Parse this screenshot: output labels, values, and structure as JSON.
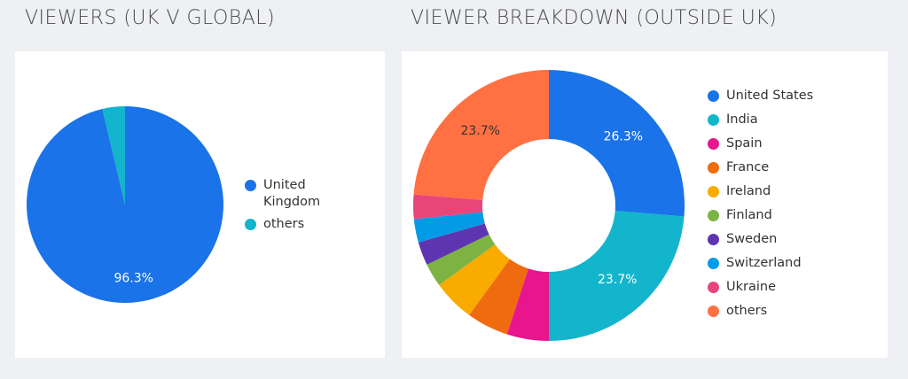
{
  "chart_data": [
    {
      "type": "pie",
      "title": "VIEWERS (UK V GLOBAL)",
      "labels": [
        "United Kingdom",
        "others"
      ],
      "values": [
        96.3,
        3.7
      ],
      "data_labels": [
        "96.3%",
        ""
      ],
      "colors": [
        "#1a73e8",
        "#12b5cb"
      ],
      "legend_position": "right"
    },
    {
      "type": "pie",
      "title": "VIEWER BREAKDOWN (OUTSIDE UK)",
      "labels": [
        "United States",
        "India",
        "Spain",
        "France",
        "Ireland",
        "Finland",
        "Sweden",
        "Switzerland",
        "Ukraine",
        "others"
      ],
      "values": [
        26.3,
        23.7,
        5.0,
        5.0,
        5.0,
        2.8,
        2.8,
        2.8,
        2.9,
        23.7
      ],
      "data_labels": [
        "26.3%",
        "23.7%",
        "",
        "",
        "",
        "",
        "",
        "",
        "",
        "23.7%"
      ],
      "colors": [
        "#1a73e8",
        "#12b5cb",
        "#e8158c",
        "#f06a0f",
        "#f9ab00",
        "#7cb342",
        "#5e35b1",
        "#039be5",
        "#e8457a",
        "#ff7043"
      ],
      "donut": true,
      "legend_position": "right"
    }
  ]
}
